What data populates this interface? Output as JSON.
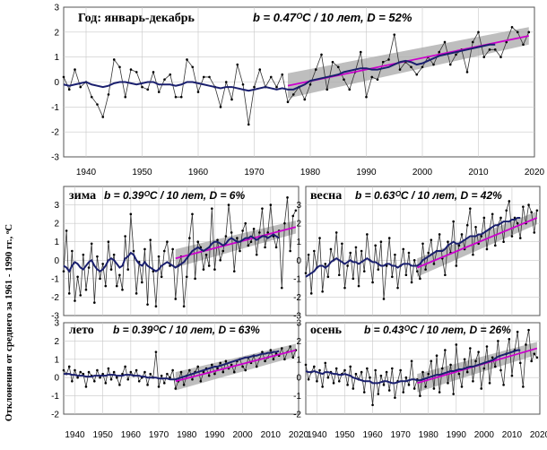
{
  "y_axis_label": "Отклонения от среднего за 1961 - 1990 гг., ᵒC",
  "colors": {
    "observed": "#333333",
    "smoothed": "#1a1f6e",
    "trend": "#cc00cc",
    "band": "#a8a8a8",
    "grid": "#c8c8c8"
  },
  "chart_data": [
    {
      "id": "year",
      "type": "line",
      "title": "Год: январь-декабрь",
      "stat": "b = 0.47ᴼC / 10 лет, D = 52%",
      "xlim": [
        1936,
        2020
      ],
      "ylim": [
        -3,
        3
      ],
      "x_ticks": [
        1940,
        1950,
        1960,
        1970,
        1980,
        1990,
        2000,
        2010,
        2020
      ],
      "y_ticks": [
        -3,
        -2,
        -1,
        0,
        1,
        2,
        3
      ],
      "trend": {
        "x": [
          1976,
          2019
        ],
        "y": [
          -0.15,
          1.85
        ]
      },
      "series": [
        {
          "kind": "observed",
          "x_start": 1936,
          "values": [
            0.2,
            -0.3,
            0.5,
            -0.2,
            0.0,
            -0.6,
            -0.9,
            -1.4,
            -0.5,
            0.9,
            0.6,
            -0.6,
            0.5,
            0.4,
            -0.2,
            -0.3,
            0.4,
            -0.4,
            0.1,
            0.3,
            -0.6,
            -0.6,
            0.9,
            0.6,
            -0.4,
            0.2,
            0.2,
            -0.2,
            -1.0,
            0.0,
            -0.7,
            0.7,
            -0.1,
            -1.7,
            -0.2,
            0.5,
            -0.2,
            0.2,
            -0.2,
            0.3,
            -0.8,
            -0.5,
            -0.2,
            -0.7,
            -0.1,
            0.5,
            1.1,
            -0.3,
            0.8,
            0.6,
            0.1,
            -0.3,
            0.4,
            1.2,
            -0.6,
            0.2,
            0.1,
            0.8,
            0.9,
            1.9,
            0.5,
            0.8,
            0.6,
            0.3,
            0.6,
            1.0,
            0.7,
            1.2,
            1.6,
            0.7,
            1.1,
            1.3,
            0.4,
            1.6,
            2.0,
            1.0,
            1.3,
            1.3,
            1.0,
            1.6,
            2.2,
            2.0,
            1.5,
            2.0
          ]
        },
        {
          "kind": "smoothed",
          "x_start": 1936,
          "values": [
            -0.1,
            -0.15,
            -0.1,
            -0.05,
            0.0,
            -0.1,
            -0.15,
            -0.2,
            -0.15,
            -0.05,
            0.0,
            0.0,
            -0.05,
            -0.1,
            -0.05,
            0.0,
            0.0,
            -0.1,
            -0.1,
            -0.1,
            -0.15,
            -0.1,
            0.0,
            0.0,
            -0.05,
            -0.1,
            -0.15,
            -0.2,
            -0.25,
            -0.2,
            -0.2,
            -0.25,
            -0.3,
            -0.35,
            -0.3,
            -0.25,
            -0.2,
            -0.25,
            -0.3,
            -0.25,
            -0.3,
            -0.3,
            -0.2,
            -0.1,
            0.05,
            0.1,
            0.15,
            0.2,
            0.25,
            0.3,
            0.4,
            0.45,
            0.5,
            0.55,
            0.55,
            0.5,
            0.5,
            0.55,
            0.6,
            0.7,
            0.8,
            0.85,
            0.8,
            0.7,
            0.75,
            0.85,
            0.95,
            1.05,
            1.1,
            1.15,
            1.2,
            1.25,
            1.3,
            1.35,
            1.4,
            1.45,
            1.5,
            1.5
          ]
        }
      ]
    },
    {
      "id": "winter",
      "type": "line",
      "title": "зима",
      "stat": "b = 0.39ᴼC / 10 лет, D = 6%",
      "xlim": [
        1936,
        2020
      ],
      "ylim": [
        -3,
        4
      ],
      "y_ticks": [
        -3,
        -2,
        -1,
        0,
        1,
        2,
        3
      ],
      "trend": {
        "x": [
          1976,
          2019
        ],
        "y": [
          0.1,
          1.8
        ]
      },
      "series": [
        {
          "kind": "observed",
          "x_start": 1936,
          "values": [
            -0.6,
            1.6,
            -1.8,
            0.5,
            -2.2,
            -0.9,
            -1.9,
            0.3,
            -1.6,
            -0.4,
            0.9,
            -2.3,
            0.2,
            -1.0,
            -0.2,
            -1.4,
            1.0,
            -0.5,
            0.3,
            -1.4,
            -0.8,
            -1.6,
            1.3,
            -0.5,
            2.5,
            0.5,
            -1.8,
            -0.1,
            -1.2,
            0.6,
            -2.4,
            1.1,
            -0.6,
            -2.5,
            0.2,
            -0.9,
            0.5,
            1.0,
            -0.3,
            0.6,
            -2.1,
            -0.3,
            0.2,
            -2.5,
            -0.9,
            1.2,
            2.5,
            -1.0,
            1.0,
            0.7,
            -0.5,
            0.3,
            -0.3,
            2.8,
            -0.5,
            1.1,
            0.0,
            0.5,
            1.3,
            3.0,
            1.5,
            -0.6,
            1.2,
            0.5,
            1.6,
            2.0,
            0.8,
            1.0,
            1.7,
            0.3,
            1.5,
            2.8,
            0.7,
            1.5,
            3.0,
            1.3,
            0.7,
            1.6,
            -1.5,
            2.0,
            3.4,
            0.5,
            2.4,
            2.7
          ]
        },
        {
          "kind": "smoothed",
          "x_start": 1936,
          "values": [
            -0.3,
            -0.4,
            -0.6,
            -0.3,
            -0.1,
            -0.2,
            -0.4,
            -0.5,
            -0.3,
            -0.1,
            0.0,
            -0.3,
            -0.5,
            -0.6,
            -0.5,
            -0.3,
            0.0,
            0.1,
            0.0,
            -0.2,
            -0.4,
            -0.3,
            0.1,
            0.2,
            0.4,
            0.3,
            0.0,
            -0.2,
            -0.3,
            -0.1,
            -0.3,
            -0.4,
            -0.5,
            -0.6,
            -0.5,
            -0.3,
            -0.2,
            -0.1,
            -0.2,
            -0.3,
            -0.4,
            -0.3,
            -0.2,
            -0.1,
            0.1,
            0.3,
            0.5,
            0.6,
            0.7,
            0.6,
            0.5,
            0.6,
            0.7,
            0.9,
            1.0,
            1.0,
            0.9,
            0.8,
            0.9,
            1.1,
            1.2,
            1.1,
            1.0,
            1.0,
            1.1,
            1.2,
            1.2,
            1.3,
            1.2,
            1.1,
            1.2,
            1.3,
            1.3,
            1.2,
            1.3,
            1.4,
            1.3,
            1.2
          ]
        }
      ]
    },
    {
      "id": "spring",
      "type": "line",
      "title": "весна",
      "stat": "b = 0.63ᴼC / 10 лет, D = 42%",
      "xlim": [
        1936,
        2020
      ],
      "ylim": [
        -3,
        4
      ],
      "y_ticks": [
        -3,
        -2,
        -1,
        0,
        1,
        2,
        3
      ],
      "trend": {
        "x": [
          1976,
          2019
        ],
        "y": [
          -0.4,
          2.3
        ]
      },
      "series": [
        {
          "kind": "observed",
          "x_start": 1936,
          "values": [
            -0.7,
            0.3,
            -1.8,
            0.5,
            -0.4,
            1.2,
            -1.7,
            -0.2,
            -0.9,
            0.6,
            0.0,
            1.5,
            -0.8,
            0.9,
            -1.5,
            -0.3,
            0.4,
            -1.0,
            0.7,
            -1.4,
            0.5,
            -0.6,
            1.4,
            0.0,
            -1.2,
            0.8,
            -0.5,
            1.0,
            -2.1,
            -0.3,
            1.2,
            -0.9,
            0.3,
            -1.5,
            -0.3,
            0.6,
            -0.8,
            0.4,
            -1.2,
            0.0,
            -0.6,
            -1.0,
            0.9,
            -0.5,
            0.4,
            1.1,
            -0.2,
            0.5,
            1.4,
            0.1,
            -0.8,
            1.0,
            0.4,
            2.1,
            -0.3,
            0.8,
            1.4,
            0.6,
            1.9,
            2.8,
            0.3,
            1.8,
            0.9,
            1.3,
            2.3,
            0.6,
            1.7,
            2.5,
            0.8,
            1.9,
            2.3,
            1.0,
            2.7,
            3.2,
            1.3,
            2.3,
            2.0,
            1.2,
            2.9,
            2.0,
            3.0,
            2.6,
            1.5,
            2.7
          ]
        },
        {
          "kind": "smoothed",
          "x_start": 1936,
          "values": [
            -0.9,
            -0.8,
            -0.7,
            -0.6,
            -0.4,
            -0.3,
            -0.3,
            -0.4,
            -0.3,
            -0.1,
            0.0,
            0.1,
            0.0,
            -0.1,
            -0.2,
            -0.1,
            0.0,
            -0.1,
            -0.1,
            -0.2,
            -0.1,
            0.0,
            0.1,
            0.0,
            -0.1,
            -0.1,
            -0.2,
            -0.3,
            -0.3,
            -0.2,
            -0.2,
            -0.3,
            -0.3,
            -0.4,
            -0.3,
            -0.2,
            -0.2,
            -0.2,
            -0.3,
            -0.3,
            -0.3,
            -0.2,
            0.0,
            0.1,
            0.2,
            0.3,
            0.4,
            0.5,
            0.5,
            0.5,
            0.6,
            0.8,
            0.9,
            1.0,
            0.9,
            0.9,
            1.0,
            1.1,
            1.2,
            1.3,
            1.3,
            1.3,
            1.4,
            1.4,
            1.5,
            1.6,
            1.7,
            1.8,
            1.9,
            1.9,
            2.0,
            2.1,
            2.1,
            2.1,
            2.2,
            2.2,
            2.3,
            2.3
          ]
        }
      ]
    },
    {
      "id": "summer",
      "type": "line",
      "title": "лето",
      "stat": "b = 0.39ᴼC / 10 лет, D = 63%",
      "xlim": [
        1936,
        2020
      ],
      "ylim": [
        -2,
        3
      ],
      "x_ticks": [
        1940,
        1950,
        1960,
        1970,
        1980,
        1990,
        2000,
        2010,
        2020
      ],
      "y_ticks": [
        -2,
        -1,
        0,
        1,
        2,
        3
      ],
      "trend": {
        "x": [
          1976,
          2019
        ],
        "y": [
          -0.2,
          1.5
        ]
      },
      "series": [
        {
          "kind": "observed",
          "x_start": 1936,
          "values": [
            0.4,
            0.2,
            0.6,
            -0.2,
            0.4,
            0.0,
            0.3,
            0.2,
            -0.5,
            0.3,
            0.1,
            -0.2,
            0.4,
            0.0,
            0.2,
            -0.3,
            0.5,
            -0.1,
            0.3,
            0.0,
            -0.4,
            0.2,
            0.6,
            -0.1,
            0.3,
            0.1,
            0.4,
            -0.2,
            0.0,
            0.3,
            -0.4,
            0.2,
            0.0,
            1.4,
            -0.5,
            0.1,
            -0.3,
            0.2,
            0.0,
            0.4,
            -0.6,
            -0.2,
            0.3,
            -0.4,
            0.1,
            0.4,
            -0.1,
            0.3,
            0.6,
            -0.2,
            0.3,
            0.5,
            0.1,
            0.7,
            0.2,
            0.5,
            0.8,
            0.3,
            0.9,
            0.5,
            0.7,
            0.3,
            0.9,
            1.0,
            0.6,
            0.4,
            1.1,
            0.8,
            1.2,
            0.6,
            1.0,
            1.4,
            0.9,
            1.1,
            1.5,
            1.0,
            1.3,
            1.2,
            1.6,
            1.0,
            1.4,
            1.7,
            1.1,
            1.5
          ]
        },
        {
          "kind": "smoothed",
          "x_start": 1936,
          "values": [
            0.2,
            0.2,
            0.2,
            0.15,
            0.15,
            0.1,
            0.1,
            0.1,
            0.05,
            0.05,
            0.05,
            0.1,
            0.1,
            0.1,
            0.1,
            0.1,
            0.15,
            0.15,
            0.15,
            0.1,
            0.1,
            0.1,
            0.15,
            0.15,
            0.15,
            0.1,
            0.1,
            0.1,
            0.05,
            0.05,
            0.0,
            0.0,
            0.0,
            0.0,
            -0.05,
            -0.05,
            -0.05,
            -0.05,
            -0.1,
            -0.1,
            -0.1,
            -0.05,
            0.0,
            0.05,
            0.1,
            0.15,
            0.2,
            0.25,
            0.3,
            0.35,
            0.4,
            0.45,
            0.5,
            0.55,
            0.6,
            0.6,
            0.65,
            0.7,
            0.75,
            0.8,
            0.85,
            0.9,
            0.95,
            1.0,
            1.05,
            1.1,
            1.1,
            1.15,
            1.2,
            1.2,
            1.25,
            1.3,
            1.3,
            1.35,
            1.35,
            1.4,
            1.4,
            1.45
          ]
        }
      ]
    },
    {
      "id": "autumn",
      "type": "line",
      "title": "осень",
      "stat": "b = 0.43ᴼC / 10 лет, D = 26%",
      "xlim": [
        1936,
        2020
      ],
      "ylim": [
        -2,
        3
      ],
      "x_ticks": [
        1940,
        1950,
        1960,
        1970,
        1980,
        1990,
        2000,
        2010,
        2020
      ],
      "y_ticks": [
        -2,
        -1,
        0,
        1,
        2,
        3
      ],
      "trend": {
        "x": [
          1976,
          2019
        ],
        "y": [
          -0.3,
          1.6
        ]
      },
      "series": [
        {
          "kind": "observed",
          "x_start": 1936,
          "values": [
            0.7,
            -0.1,
            0.3,
            0.6,
            -0.2,
            0.4,
            -0.5,
            0.8,
            0.0,
            0.3,
            -0.3,
            0.5,
            -0.2,
            0.2,
            0.4,
            -0.4,
            0.6,
            -0.6,
            0.2,
            -0.1,
            0.3,
            -0.8,
            0.5,
            0.0,
            -1.5,
            0.4,
            -0.9,
            0.1,
            -0.4,
            0.3,
            -0.7,
            0.5,
            -1.1,
            -0.2,
            0.4,
            -0.8,
            0.0,
            -0.4,
            0.9,
            -0.6,
            -0.1,
            -1.0,
            0.3,
            -0.5,
            0.2,
            0.9,
            -0.6,
            1.2,
            -0.8,
            0.5,
            1.5,
            -0.3,
            0.7,
            -0.9,
            1.8,
            0.2,
            -0.5,
            1.0,
            0.3,
            1.6,
            -0.2,
            0.9,
            1.4,
            -0.6,
            0.5,
            1.7,
            -0.3,
            1.1,
            0.6,
            2.0,
            0.4,
            -0.4,
            1.3,
            2.1,
            0.1,
            1.5,
            2.5,
            0.8,
            -0.5,
            1.8,
            2.6,
            0.9,
            1.3,
            1.1
          ]
        },
        {
          "kind": "smoothed",
          "x_start": 1936,
          "values": [
            0.35,
            0.3,
            0.3,
            0.35,
            0.3,
            0.25,
            0.2,
            0.3,
            0.3,
            0.25,
            0.2,
            0.2,
            0.15,
            0.15,
            0.2,
            0.15,
            0.1,
            0.0,
            -0.05,
            -0.1,
            -0.15,
            -0.2,
            -0.2,
            -0.2,
            -0.3,
            -0.3,
            -0.3,
            -0.25,
            -0.2,
            -0.2,
            -0.25,
            -0.3,
            -0.3,
            -0.25,
            -0.2,
            -0.2,
            -0.2,
            -0.15,
            -0.1,
            -0.1,
            -0.15,
            -0.15,
            -0.1,
            -0.05,
            0.0,
            0.05,
            0.1,
            0.15,
            0.15,
            0.2,
            0.25,
            0.3,
            0.35,
            0.35,
            0.4,
            0.45,
            0.45,
            0.5,
            0.55,
            0.6,
            0.6,
            0.65,
            0.7,
            0.75,
            0.8,
            0.85,
            0.9,
            0.95,
            1.05,
            1.15,
            1.2,
            1.25,
            1.3,
            1.35,
            1.4,
            1.45,
            1.5,
            1.5
          ]
        }
      ]
    }
  ]
}
